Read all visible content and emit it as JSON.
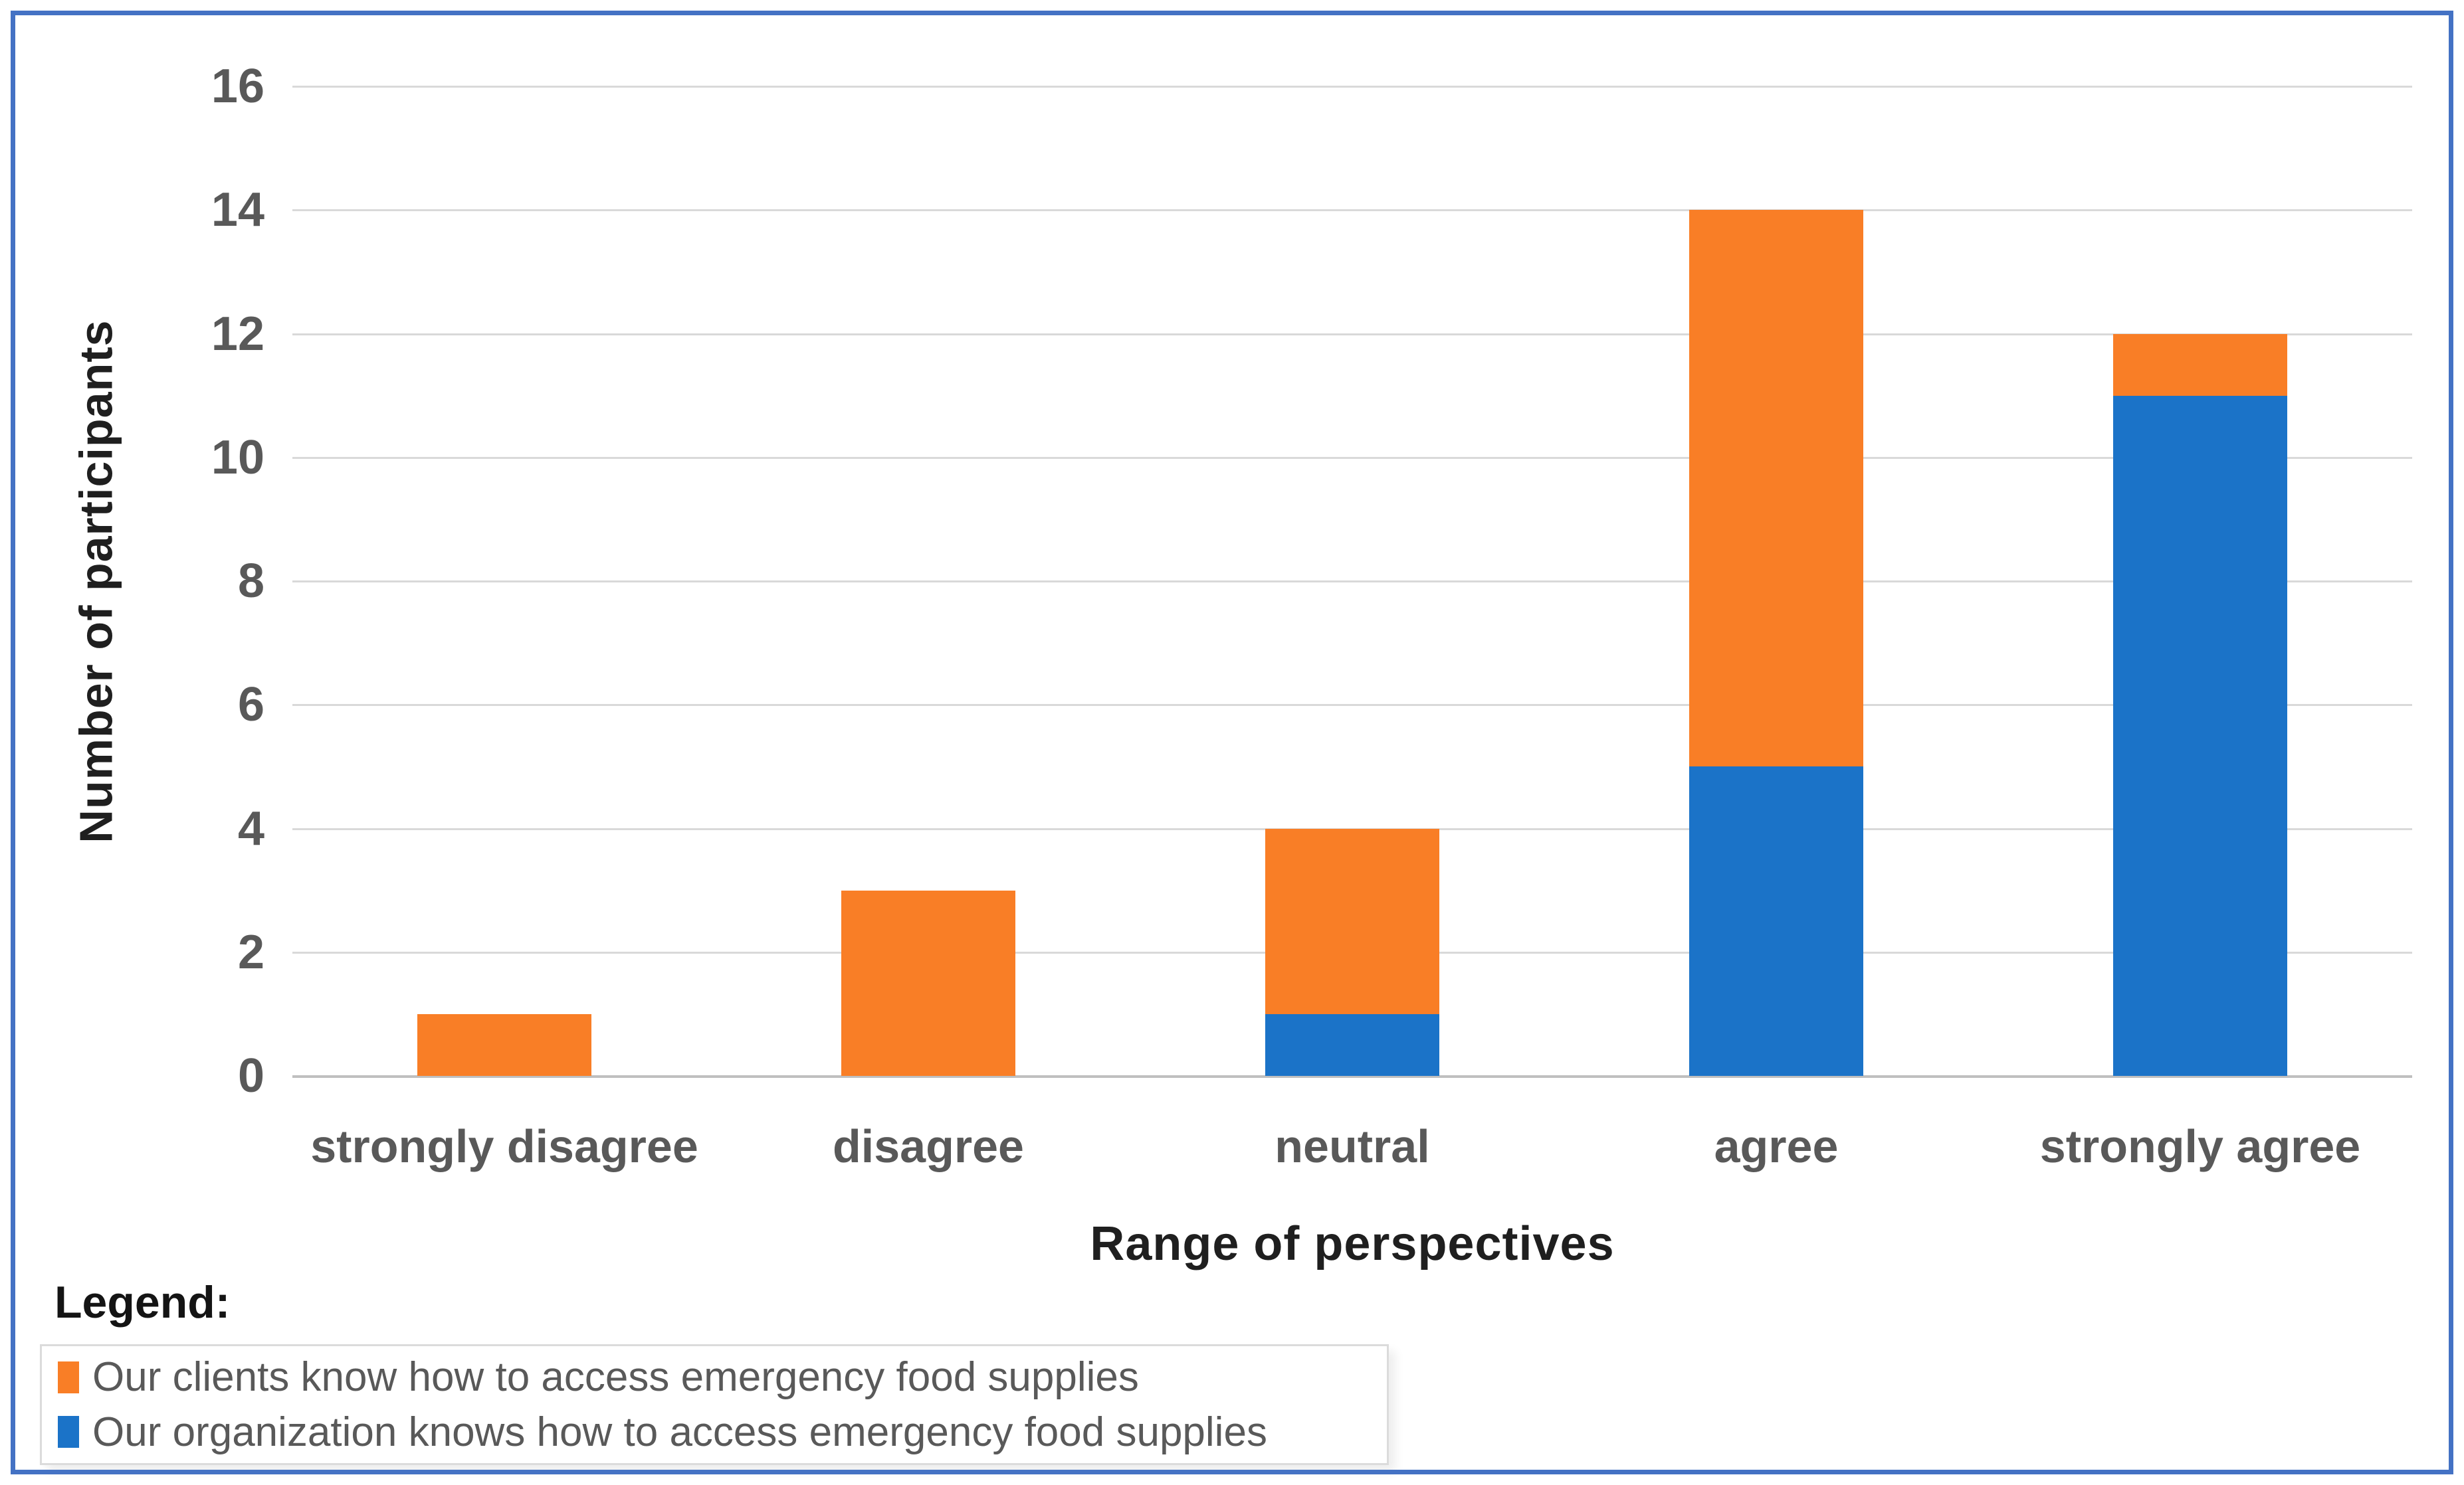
{
  "figure": {
    "frame_color": "#4472C4",
    "background": "#FFFFFF"
  },
  "colors": {
    "clients_orange": "#F97E26",
    "organization_blue": "#1B73C8",
    "gridline": "#D9D9D9",
    "axis_line": "#BFBFBF",
    "tick_text": "#595959",
    "title_text": "#1F1F1F"
  },
  "y_axis": {
    "title": "Number of participants",
    "ticks": [
      16,
      14,
      12,
      10,
      8,
      6,
      4,
      2,
      0
    ]
  },
  "x_axis": {
    "title": "Range of perspectives",
    "categories": [
      "strongly disagree",
      "disagree",
      "neutral",
      "agree",
      "strongly agree"
    ]
  },
  "legend": {
    "heading": "Legend:",
    "items": [
      {
        "key": "clients",
        "label": "Our clients know how to access emergency food supplies",
        "color": "#F97E26"
      },
      {
        "key": "organization",
        "label": "Our organization knows how to access emergency food supplies",
        "color": "#1B73C8"
      }
    ]
  },
  "chart_data": {
    "type": "bar",
    "stacked": true,
    "title": "",
    "xlabel": "Range of perspectives",
    "ylabel": "Number of participants",
    "ylim": [
      0,
      16
    ],
    "ytick_step": 2,
    "grid": true,
    "legend_position": "bottom-left",
    "categories": [
      "strongly disagree",
      "disagree",
      "neutral",
      "agree",
      "strongly agree"
    ],
    "series": [
      {
        "key": "organization",
        "name": "Our organization knows how to access emergency food supplies",
        "color": "#1B73C8",
        "stack_order": "bottom",
        "values": [
          0,
          0,
          1,
          5,
          11
        ]
      },
      {
        "key": "clients",
        "name": "Our clients know how to access emergency food supplies",
        "color": "#F97E26",
        "stack_order": "top",
        "values": [
          1,
          3,
          3,
          9,
          1
        ]
      }
    ],
    "totals": [
      1,
      3,
      4,
      14,
      12
    ]
  }
}
